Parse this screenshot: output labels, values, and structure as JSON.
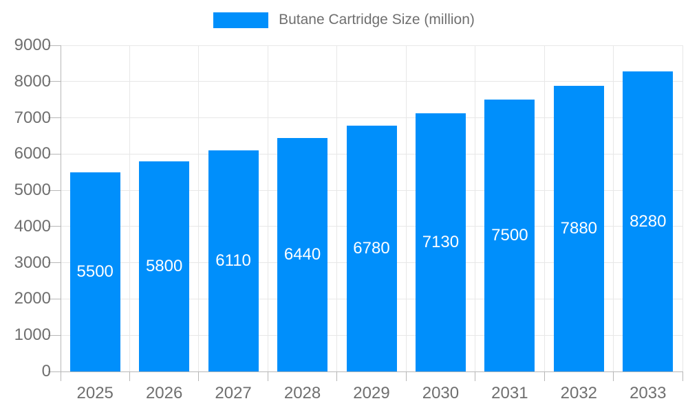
{
  "chart_data": {
    "type": "bar",
    "title": "Butane Cartridge Size (million)",
    "legend": "Butane Cartridge Size (million)",
    "categories": [
      "2025",
      "2026",
      "2027",
      "2028",
      "2029",
      "2030",
      "2031",
      "2032",
      "2033"
    ],
    "values": [
      5500,
      5800,
      6110,
      6440,
      6780,
      7130,
      7500,
      7880,
      8280
    ],
    "xlabel": "",
    "ylabel": "",
    "ylim": [
      0,
      9000
    ],
    "ytick_step": 1000,
    "grid": true,
    "legend_position": "top",
    "value_labels_visible": true,
    "colors": {
      "bar": "#008FFB",
      "axis_text": "#6f6f6f",
      "gridline": "#e7e7e7",
      "axis_line": "#b6b6b6",
      "value_label": "#ffffff"
    }
  }
}
